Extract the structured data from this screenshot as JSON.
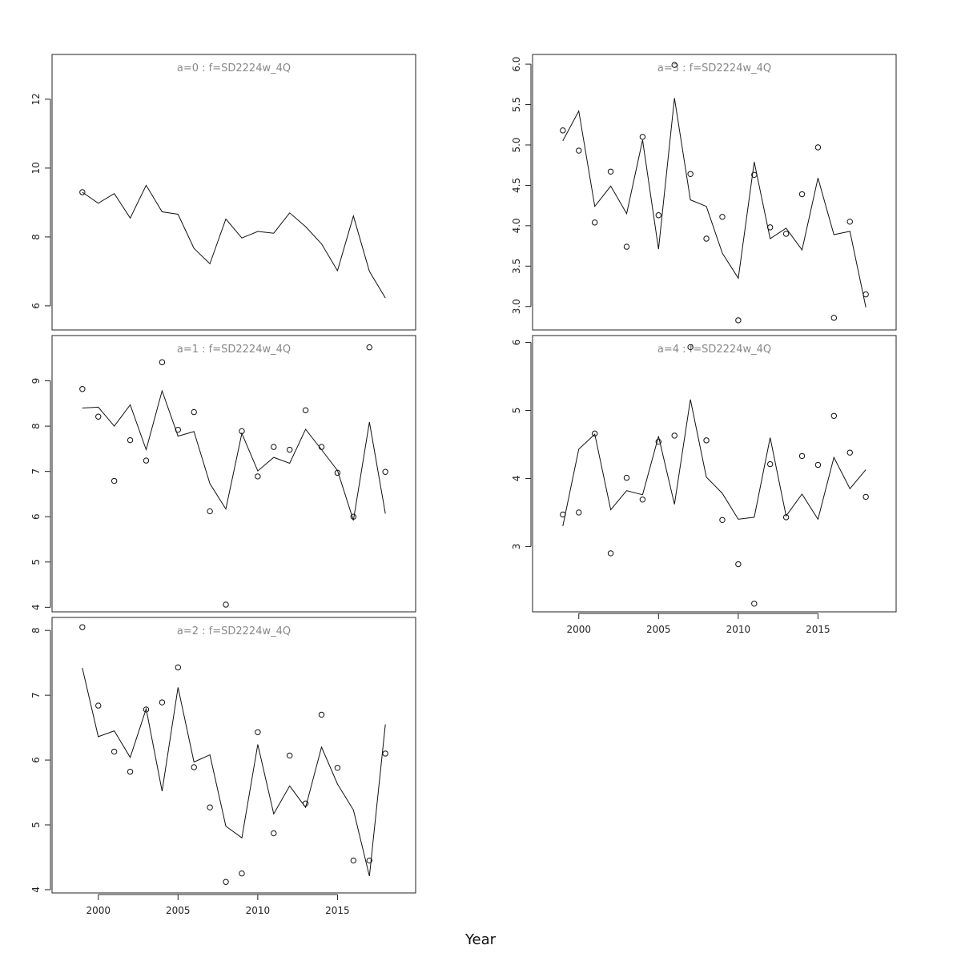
{
  "xlabel": "Year",
  "chart_data": [
    {
      "type": "line",
      "title": "a=0  :  f=SD2224w_4Q",
      "x": [
        1999,
        2000,
        2001,
        2002,
        2003,
        2004,
        2005,
        2006,
        2007,
        2008,
        2009,
        2010,
        2011,
        2012,
        2013,
        2014,
        2015,
        2016,
        2017,
        2018
      ],
      "xlim": [
        1997.1,
        2019.9
      ],
      "ylim": [
        5.3,
        13.3
      ],
      "yticks": [
        6,
        8,
        10,
        12
      ],
      "xticks": [
        2000,
        2005,
        2010,
        2015
      ],
      "show_xaxis": false,
      "series": [
        {
          "kind": "line",
          "values": [
            9.3,
            8.98,
            9.26,
            8.55,
            9.5,
            8.73,
            8.66,
            7.67,
            7.22,
            8.52,
            7.97,
            8.16,
            8.11,
            8.7,
            8.3,
            7.8,
            7.02,
            8.61,
            7.0,
            6.23
          ]
        },
        {
          "kind": "points",
          "values": [
            9.3,
            null,
            null,
            null,
            null,
            null,
            null,
            null,
            null,
            null,
            null,
            null,
            null,
            null,
            null,
            null,
            null,
            null,
            null,
            null
          ]
        }
      ]
    },
    {
      "type": "line",
      "title": "a=1  :  f=SD2224w_4Q",
      "x": [
        1999,
        2000,
        2001,
        2002,
        2003,
        2004,
        2005,
        2006,
        2007,
        2008,
        2009,
        2010,
        2011,
        2012,
        2013,
        2014,
        2015,
        2016,
        2017,
        2018
      ],
      "xlim": [
        1997.1,
        2019.9
      ],
      "ylim": [
        3.9,
        10.0
      ],
      "yticks": [
        4,
        5,
        6,
        7,
        8,
        9
      ],
      "xticks": [
        2000,
        2005,
        2010,
        2015
      ],
      "show_xaxis": false,
      "series": [
        {
          "kind": "line",
          "values": [
            8.4,
            8.42,
            8.0,
            8.47,
            7.48,
            8.78,
            7.78,
            7.88,
            6.73,
            6.17,
            7.84,
            7.01,
            7.31,
            7.18,
            7.93,
            7.48,
            7.02,
            5.92,
            8.09,
            6.07
          ]
        },
        {
          "kind": "points",
          "values": [
            8.82,
            8.21,
            6.79,
            7.69,
            7.24,
            9.41,
            7.92,
            8.31,
            6.12,
            4.06,
            7.89,
            6.89,
            7.54,
            7.48,
            8.35,
            7.54,
            6.97,
            6.0,
            9.74,
            6.99
          ]
        }
      ]
    },
    {
      "type": "line",
      "title": "a=2  :  f=SD2224w_4Q",
      "x": [
        1999,
        2000,
        2001,
        2002,
        2003,
        2004,
        2005,
        2006,
        2007,
        2008,
        2009,
        2010,
        2011,
        2012,
        2013,
        2014,
        2015,
        2016,
        2017,
        2018
      ],
      "xlim": [
        1997.1,
        2019.9
      ],
      "ylim": [
        3.95,
        8.2
      ],
      "yticks": [
        4,
        5,
        6,
        7,
        8
      ],
      "xticks": [
        2000,
        2005,
        2010,
        2015
      ],
      "show_xaxis": true,
      "series": [
        {
          "kind": "line",
          "values": [
            7.42,
            6.36,
            6.45,
            6.04,
            6.79,
            5.52,
            7.12,
            5.97,
            6.08,
            4.98,
            4.8,
            6.24,
            5.17,
            5.6,
            5.27,
            6.2,
            5.63,
            5.23,
            4.21,
            6.55
          ]
        },
        {
          "kind": "points",
          "values": [
            8.05,
            6.84,
            6.13,
            5.82,
            6.78,
            6.89,
            7.43,
            5.89,
            5.27,
            4.12,
            4.25,
            6.43,
            4.87,
            6.07,
            5.33,
            6.7,
            5.88,
            4.45,
            4.45,
            6.1
          ]
        }
      ]
    },
    {
      "type": "line",
      "title": "a=3  :  f=SD2224w_4Q",
      "x": [
        1999,
        2000,
        2001,
        2002,
        2003,
        2004,
        2005,
        2006,
        2007,
        2008,
        2009,
        2010,
        2011,
        2012,
        2013,
        2014,
        2015,
        2016,
        2017,
        2018
      ],
      "xlim": [
        1997.1,
        2019.9
      ],
      "ylim": [
        2.71,
        6.12
      ],
      "yticks": [
        3.0,
        3.5,
        4.0,
        4.5,
        5.0,
        5.5,
        6.0
      ],
      "xticks": [
        2000,
        2005,
        2010,
        2015
      ],
      "show_xaxis": false,
      "series": [
        {
          "kind": "line",
          "values": [
            5.05,
            5.42,
            4.24,
            4.49,
            4.15,
            5.06,
            3.71,
            5.58,
            4.32,
            4.24,
            3.66,
            3.35,
            4.79,
            3.84,
            3.97,
            3.7,
            4.59,
            3.89,
            3.93,
            2.99
          ]
        },
        {
          "kind": "points",
          "values": [
            5.18,
            4.93,
            4.04,
            4.67,
            3.74,
            5.1,
            4.13,
            5.99,
            4.64,
            3.84,
            4.11,
            2.83,
            4.63,
            3.98,
            3.9,
            4.39,
            4.97,
            2.86,
            4.05,
            3.15
          ]
        }
      ]
    },
    {
      "type": "line",
      "title": "a=4  :  f=SD2224w_4Q",
      "x": [
        1999,
        2000,
        2001,
        2002,
        2003,
        2004,
        2005,
        2006,
        2007,
        2008,
        2009,
        2010,
        2011,
        2012,
        2013,
        2014,
        2015,
        2016,
        2017,
        2018
      ],
      "xlim": [
        1997.1,
        2019.9
      ],
      "ylim": [
        2.04,
        6.1
      ],
      "yticks": [
        3,
        4,
        5,
        6
      ],
      "xticks": [
        2000,
        2005,
        2010,
        2015
      ],
      "show_xaxis": true,
      "series": [
        {
          "kind": "line",
          "values": [
            3.3,
            4.43,
            4.65,
            3.54,
            3.82,
            3.76,
            4.62,
            3.62,
            5.16,
            4.02,
            3.78,
            3.4,
            3.43,
            4.6,
            3.45,
            3.77,
            3.4,
            4.31,
            3.85,
            4.13
          ]
        },
        {
          "kind": "points",
          "values": [
            3.47,
            3.5,
            4.66,
            2.9,
            4.01,
            3.69,
            4.54,
            4.63,
            5.93,
            4.56,
            3.39,
            2.74,
            2.16,
            4.21,
            3.43,
            4.33,
            4.2,
            4.92,
            4.38,
            3.73
          ]
        }
      ]
    }
  ]
}
